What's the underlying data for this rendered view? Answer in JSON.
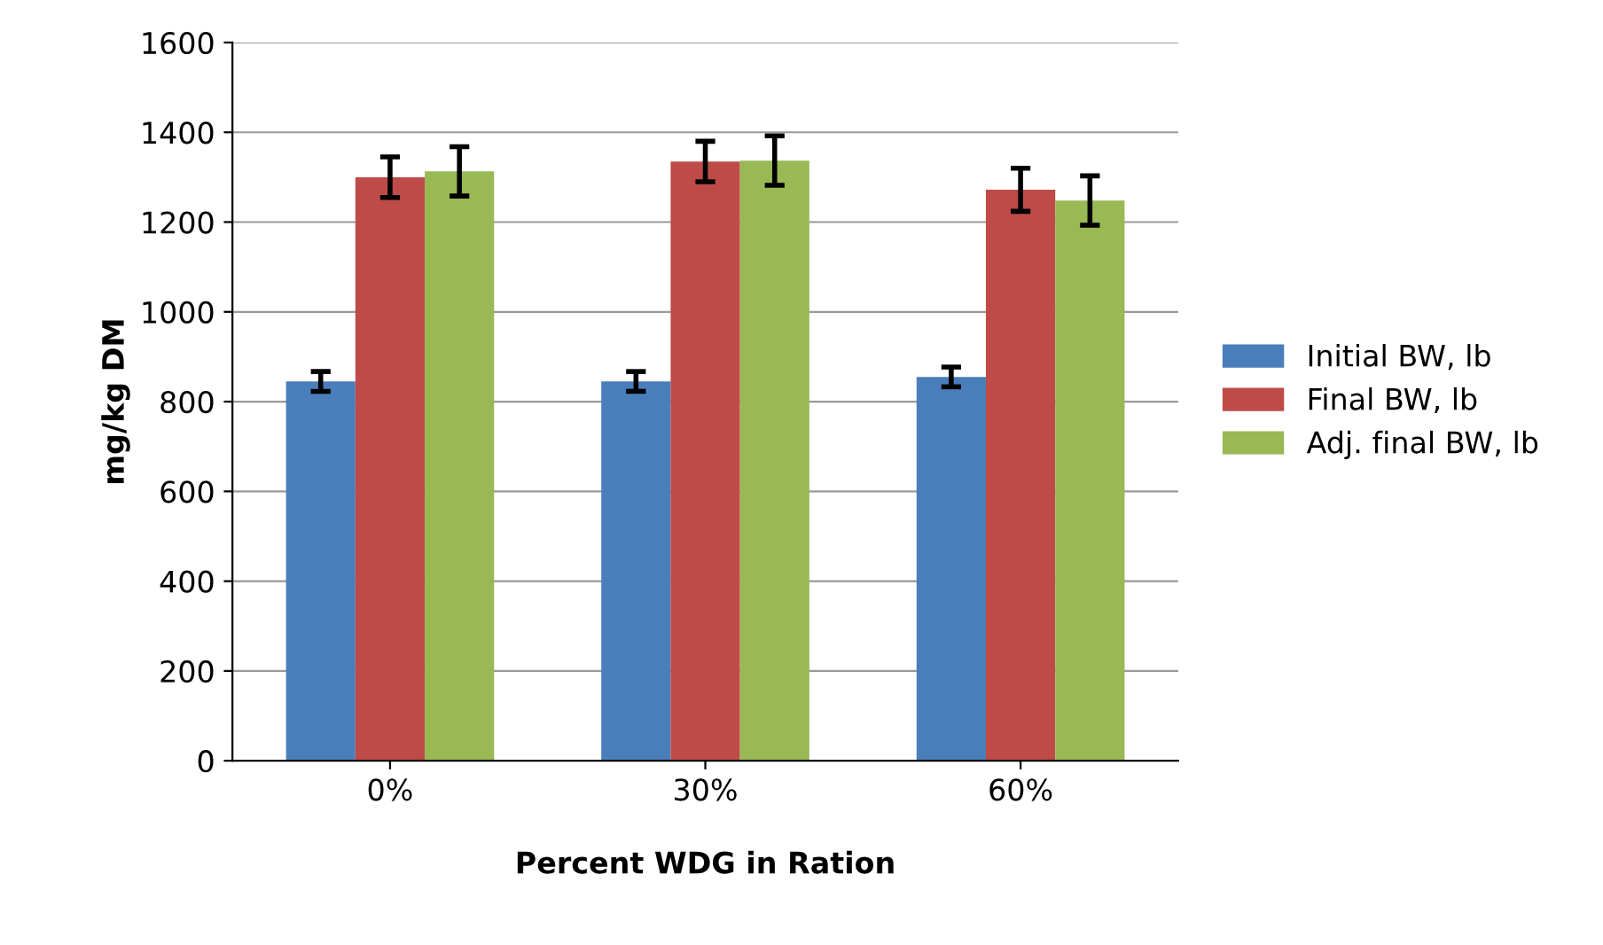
{
  "chart_data": {
    "type": "bar",
    "xlabel": "Percent WDG in Ration",
    "ylabel": "mg/kg DM",
    "categories": [
      "0%",
      "30%",
      "60%"
    ],
    "series": [
      {
        "name": "Initial BW, lb",
        "color": "#4a7ebb",
        "values": [
          845,
          845,
          855
        ],
        "errors": [
          22,
          22,
          22
        ]
      },
      {
        "name": "Final BW, lb",
        "color": "#be4b48",
        "values": [
          1300,
          1335,
          1272
        ],
        "errors": [
          45,
          45,
          48
        ]
      },
      {
        "name": "Adj. final BW, lb",
        "color": "#98b954",
        "values": [
          1313,
          1337,
          1248
        ],
        "errors": [
          55,
          55,
          55
        ]
      }
    ],
    "ylim": [
      0,
      1600
    ],
    "yticks": [
      0,
      200,
      400,
      600,
      800,
      1000,
      1200,
      1400,
      1600
    ],
    "grid": "y",
    "legend": "right"
  }
}
